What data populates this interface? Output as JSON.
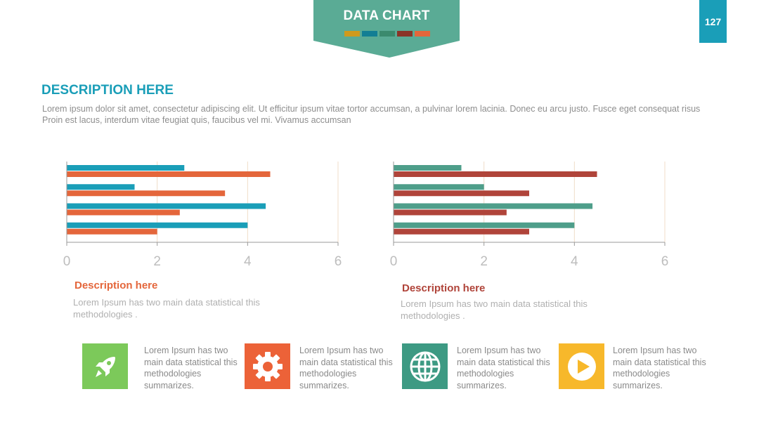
{
  "header": {
    "title": "DATA CHART",
    "page_number": "127",
    "swatch_colors": [
      "#cf9a1d",
      "#127e94",
      "#3b8a6e",
      "#8a3427",
      "#e4663b"
    ]
  },
  "intro": {
    "heading": "DESCRIPTION HERE",
    "text": "Lorem ipsum dolor sit amet, consectetur adipiscing elit. Ut efficitur ipsum vitae tortor accumsan, a pulvinar lorem lacinia. Donec eu arcu justo. Fusce eget consequat risus Proin est lacus, interdum vitae feugiat quis, faucibus vel mi.  Vivamus accumsan"
  },
  "chart_data": [
    {
      "type": "bar",
      "orientation": "horizontal",
      "categories": [
        "",
        "",
        "",
        ""
      ],
      "series": [
        {
          "values": [
            2.6,
            1.5,
            4.4,
            4.0
          ],
          "color": "#1a9eb8"
        },
        {
          "values": [
            4.5,
            3.5,
            2.5,
            2.0
          ],
          "color": "#e4663b"
        }
      ],
      "xlim": [
        0,
        6
      ],
      "xticks": [
        "0",
        "2",
        "4",
        "6"
      ],
      "grid": true
    },
    {
      "type": "bar",
      "orientation": "horizontal",
      "categories": [
        "",
        "",
        "",
        ""
      ],
      "series": [
        {
          "values": [
            1.5,
            2.0,
            4.4,
            4.0
          ],
          "color": "#4e9e8a"
        },
        {
          "values": [
            4.5,
            3.0,
            2.5,
            3.0
          ],
          "color": "#b0443a"
        }
      ],
      "xlim": [
        0,
        6
      ],
      "xticks": [
        "0",
        "2",
        "4",
        "6"
      ],
      "grid": true
    }
  ],
  "chart_captions": [
    {
      "title": "Description here",
      "text": "Lorem Ipsum has two main data statistical this methodologies .",
      "color": "#e4663b"
    },
    {
      "title": "Description here",
      "text": "Lorem Ipsum has two main data statistical this methodologies .",
      "color": "#b0443a"
    }
  ],
  "features": [
    {
      "icon": "rocket-icon",
      "color": "#7cc95a",
      "text": "Lorem Ipsum has two main data statistical this methodologies summarizes."
    },
    {
      "icon": "gear-icon",
      "color": "#ec6238",
      "text": "Lorem Ipsum has two main data statistical this methodologies summarizes."
    },
    {
      "icon": "globe-icon",
      "color": "#3d9a83",
      "text": "Lorem Ipsum has two main data statistical this methodologies summarizes."
    },
    {
      "icon": "play-icon",
      "color": "#f7b82b",
      "text": "Lorem Ipsum has two main data statistical this methodologies summarizes."
    }
  ]
}
